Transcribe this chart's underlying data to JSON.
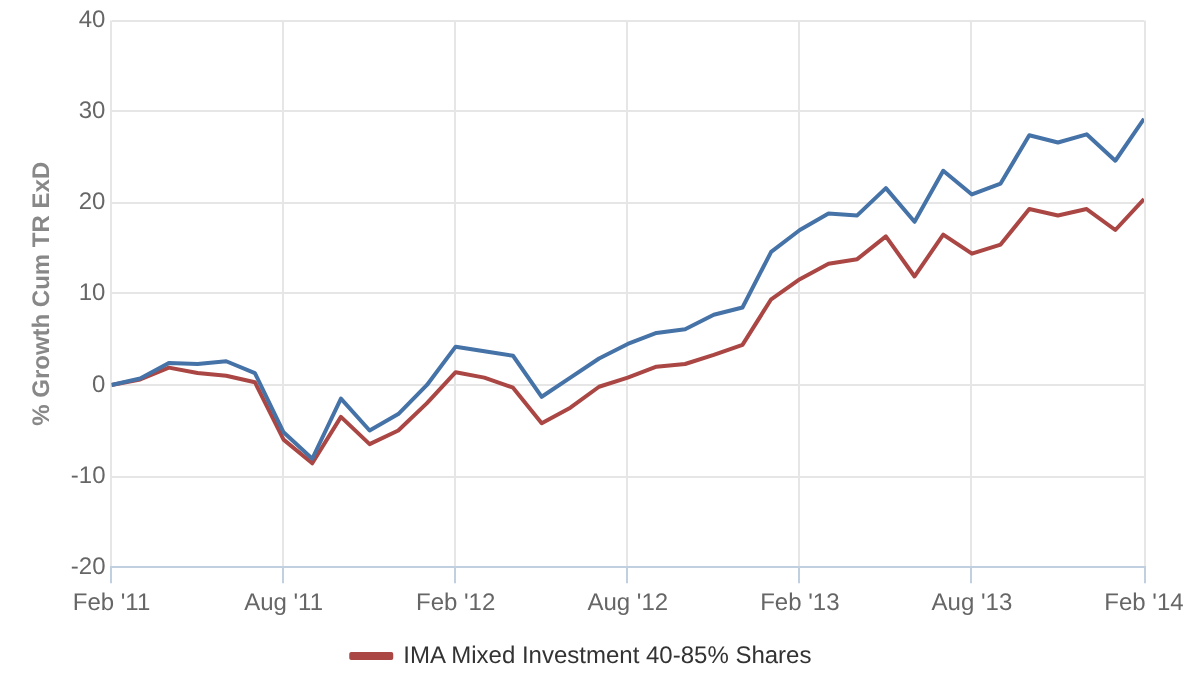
{
  "chart_data": {
    "type": "line",
    "ylabel": "% Growth Cum TR ExD",
    "x": [
      "2011-02",
      "2011-03",
      "2011-04",
      "2011-05",
      "2011-06",
      "2011-07",
      "2011-08",
      "2011-09",
      "2011-10",
      "2011-11",
      "2011-12",
      "2012-01",
      "2012-02",
      "2012-03",
      "2012-04",
      "2012-05",
      "2012-06",
      "2012-07",
      "2012-08",
      "2012-09",
      "2012-10",
      "2012-11",
      "2012-12",
      "2013-01",
      "2013-02",
      "2013-03",
      "2013-04",
      "2013-05",
      "2013-06",
      "2013-07",
      "2013-08",
      "2013-09",
      "2013-10",
      "2013-11",
      "2013-12",
      "2014-01",
      "2014-02"
    ],
    "series": [
      {
        "color": "#4572a7",
        "values": [
          0,
          0.7,
          2.4,
          2.3,
          2.6,
          1.3,
          -5.2,
          -8.1,
          -1.5,
          -5,
          -3.2,
          0,
          4.2,
          3.7,
          3.2,
          -1.3,
          0.8,
          2.9,
          4.5,
          5.7,
          6.1,
          7.7,
          8.5,
          14.6,
          17,
          18.8,
          18.6,
          21.6,
          17.9,
          23.5,
          20.9,
          22.1,
          27.4,
          26.6,
          27.5,
          24.6,
          29.2
        ]
      },
      {
        "name": "IMA Mixed Investment 40-85% Shares",
        "color": "#aa4643",
        "values": [
          0,
          0.6,
          1.9,
          1.3,
          1,
          0.3,
          -6,
          -8.6,
          -3.5,
          -6.5,
          -5,
          -2,
          1.4,
          0.8,
          -0.3,
          -4.2,
          -2.5,
          -0.2,
          0.8,
          2,
          2.3,
          3.3,
          4.4,
          9.4,
          11.6,
          13.3,
          13.8,
          16.3,
          11.9,
          16.5,
          14.4,
          15.4,
          19.3,
          18.6,
          19.3,
          17,
          20.4
        ]
      }
    ],
    "xlim": [
      "2011-02",
      "2014-02"
    ],
    "xticks": [
      {
        "value": "2011-02",
        "label": "Feb '11"
      },
      {
        "value": "2011-08",
        "label": "Aug '11"
      },
      {
        "value": "2012-02",
        "label": "Feb '12"
      },
      {
        "value": "2012-08",
        "label": "Aug '12"
      },
      {
        "value": "2013-02",
        "label": "Feb '13"
      },
      {
        "value": "2013-08",
        "label": "Aug '13"
      },
      {
        "value": "2014-02",
        "label": "Feb '14"
      }
    ],
    "ylim": [
      -20,
      40
    ],
    "yticks": [
      -20,
      -10,
      0,
      10,
      20,
      30,
      40
    ],
    "grid": true,
    "legend": "bottom",
    "marker": "none",
    "line_style": "solid"
  }
}
